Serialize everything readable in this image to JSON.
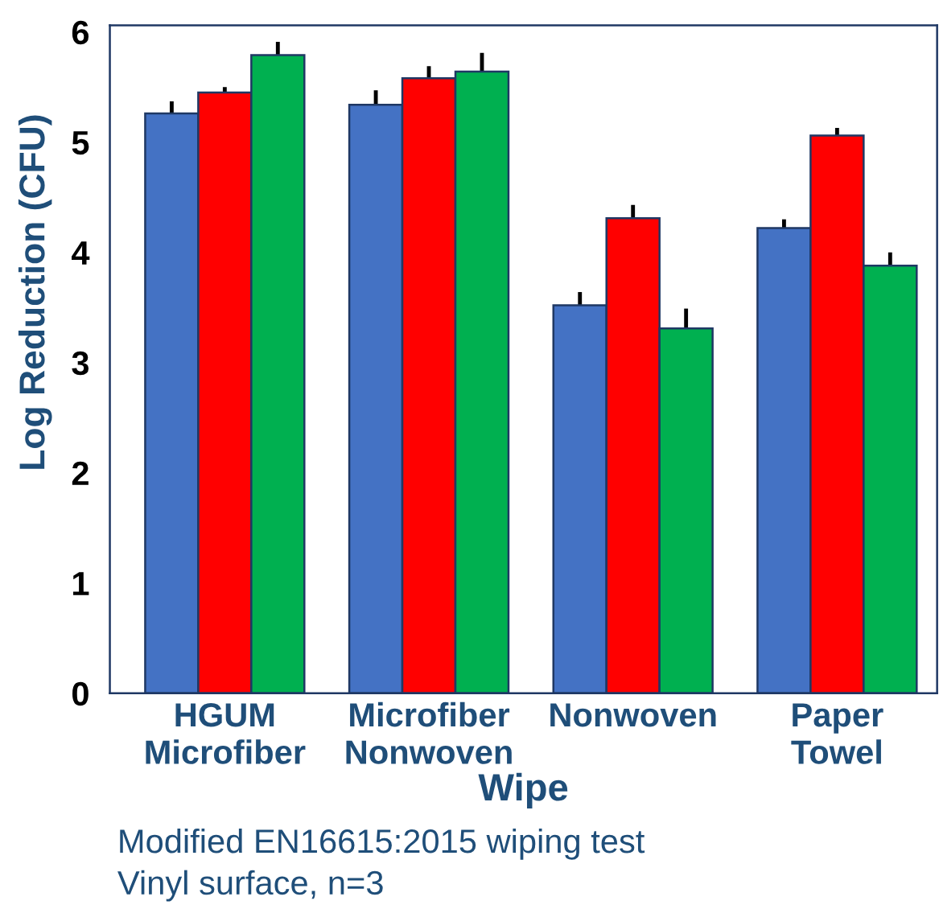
{
  "chart_data": {
    "type": "bar",
    "categories": [
      "HGUM\nMicrofiber",
      "Microfiber\nNonwoven",
      "Nonwoven",
      "Paper\nTowel"
    ],
    "series": [
      {
        "color": "#4472c4",
        "values": [
          5.26,
          5.34,
          3.52,
          4.22
        ],
        "errors": [
          [
            5.26,
            5.37
          ],
          [
            5.34,
            5.47
          ],
          [
            3.52,
            3.64
          ],
          [
            4.22,
            4.3
          ]
        ]
      },
      {
        "color": "#ff0000",
        "values": [
          5.45,
          5.58,
          4.31,
          5.06
        ],
        "errors": [
          [
            5.45,
            5.5
          ],
          [
            5.58,
            5.69
          ],
          [
            4.31,
            4.43
          ],
          [
            5.06,
            5.13
          ]
        ]
      },
      {
        "color": "#00b050",
        "values": [
          5.79,
          5.64,
          3.31,
          3.88
        ],
        "errors": [
          [
            5.79,
            5.91
          ],
          [
            5.64,
            5.81
          ],
          [
            3.31,
            3.49
          ],
          [
            3.88,
            4.0
          ]
        ]
      }
    ],
    "xlabel": "Wipe",
    "ylabel": "Log Reduction (CFU)",
    "ylim": [
      0,
      6.06
    ],
    "yticks": [
      0,
      1,
      2,
      3,
      4,
      5,
      6
    ],
    "grid": false,
    "legend": false,
    "annotations": [
      "Modified EN16615:2015 wiping test",
      "Vinyl surface, n=3"
    ]
  }
}
